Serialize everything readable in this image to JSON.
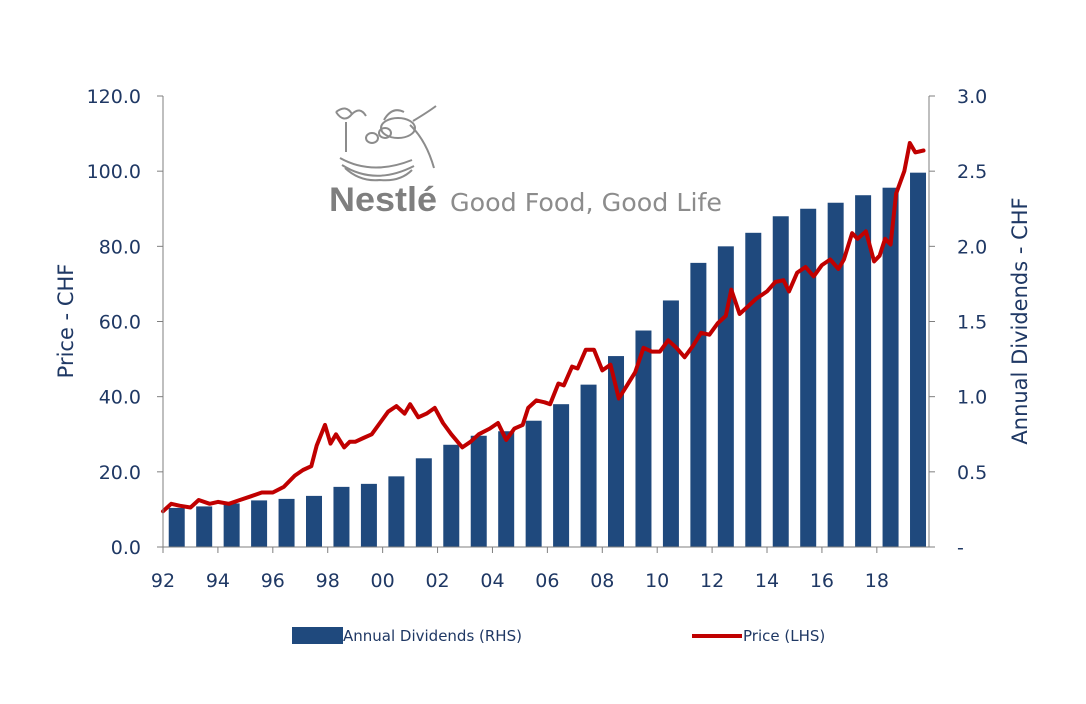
{
  "colors": {
    "bar": "#1f497d",
    "line": "#c00000",
    "axis": "#1f3864"
  },
  "logo": {
    "brand": "Nestlé",
    "tagline": "Good Food, Good Life"
  },
  "chart_data": {
    "type": "bar+line",
    "title": "",
    "ylabel_left": "Price - CHF",
    "ylabel_right": "Annual Dividends - CHF",
    "ylim_left": [
      0,
      120
    ],
    "ylim_right": [
      0,
      3.0
    ],
    "yticks_left": [
      "0.0",
      "20.0",
      "40.0",
      "60.0",
      "80.0",
      "100.0",
      "120.0"
    ],
    "yticks_right": [
      "-",
      "0.5",
      "1.0",
      "1.5",
      "2.0",
      "2.5",
      "3.0"
    ],
    "xticks": [
      "92",
      "94",
      "96",
      "98",
      "00",
      "02",
      "04",
      "06",
      "08",
      "10",
      "12",
      "14",
      "16",
      "18"
    ],
    "x_range": [
      1992,
      2019.9
    ],
    "bars": {
      "name": "Annual Dividends (RHS)",
      "axis": "right",
      "years": [
        1992,
        1993,
        1994,
        1995,
        1996,
        1997,
        1998,
        1999,
        2000,
        2001,
        2002,
        2003,
        2004,
        2005,
        2006,
        2007,
        2008,
        2009,
        2010,
        2011,
        2012,
        2013,
        2014,
        2015,
        2016,
        2017,
        2018,
        2019
      ],
      "values": [
        0.26,
        0.27,
        0.29,
        0.31,
        0.32,
        0.34,
        0.4,
        0.42,
        0.47,
        0.59,
        0.68,
        0.74,
        0.77,
        0.84,
        0.95,
        1.08,
        1.27,
        1.44,
        1.64,
        1.89,
        2.0,
        2.09,
        2.2,
        2.25,
        2.29,
        2.34,
        2.39,
        2.49
      ]
    },
    "line": {
      "name": "Price (LHS)",
      "axis": "left",
      "x": [
        1992.0,
        1992.3,
        1992.6,
        1993.0,
        1993.3,
        1993.7,
        1994.0,
        1994.4,
        1994.8,
        1995.2,
        1995.6,
        1996.0,
        1996.4,
        1996.8,
        1997.1,
        1997.4,
        1997.6,
        1997.9,
        1998.1,
        1998.3,
        1998.6,
        1998.8,
        1999.0,
        1999.3,
        1999.6,
        1999.9,
        2000.2,
        2000.5,
        2000.8,
        2001.0,
        2001.3,
        2001.6,
        2001.9,
        2002.2,
        2002.5,
        2002.9,
        2003.2,
        2003.5,
        2003.9,
        2004.2,
        2004.5,
        2004.8,
        2005.1,
        2005.3,
        2005.6,
        2005.9,
        2006.1,
        2006.4,
        2006.6,
        2006.9,
        2007.1,
        2007.4,
        2007.7,
        2008.0,
        2008.3,
        2008.6,
        2008.9,
        2009.2,
        2009.5,
        2009.8,
        2010.1,
        2010.4,
        2010.7,
        2011.0,
        2011.3,
        2011.6,
        2011.9,
        2012.2,
        2012.5,
        2012.7,
        2013.0,
        2013.3,
        2013.6,
        2014.0,
        2014.3,
        2014.6,
        2014.8,
        2015.1,
        2015.4,
        2015.7,
        2016.0,
        2016.3,
        2016.6,
        2016.8,
        2017.1,
        2017.3,
        2017.6,
        2017.9,
        2018.1,
        2018.3,
        2018.5,
        2018.7,
        2019.0,
        2019.2,
        2019.4,
        2019.7
      ],
      "values": [
        9.5,
        11.5,
        11,
        10.5,
        12.5,
        11.5,
        12,
        11.5,
        12.5,
        13.5,
        14.5,
        14.5,
        16,
        19,
        20.5,
        21.5,
        27,
        32.5,
        27.5,
        30,
        26.5,
        28,
        28,
        29,
        30,
        33,
        36,
        37.5,
        35.5,
        38,
        34.5,
        35.5,
        37,
        33,
        30,
        26.5,
        28,
        30,
        31.5,
        33,
        28.5,
        31.5,
        32.5,
        37,
        39,
        38.5,
        38,
        43.5,
        43,
        48,
        47.5,
        52.5,
        52.5,
        47,
        48.5,
        39.5,
        43,
        46.5,
        53,
        52,
        52,
        55,
        53,
        50.5,
        53.5,
        57,
        56.5,
        59.5,
        61.5,
        68.5,
        62,
        64,
        66,
        68,
        70.5,
        71,
        68,
        73,
        74.5,
        72,
        75,
        76.5,
        74,
        76.5,
        83.5,
        82,
        84,
        76,
        77.5,
        82,
        80.5,
        94,
        100,
        107.5,
        105,
        105.5
      ]
    }
  }
}
